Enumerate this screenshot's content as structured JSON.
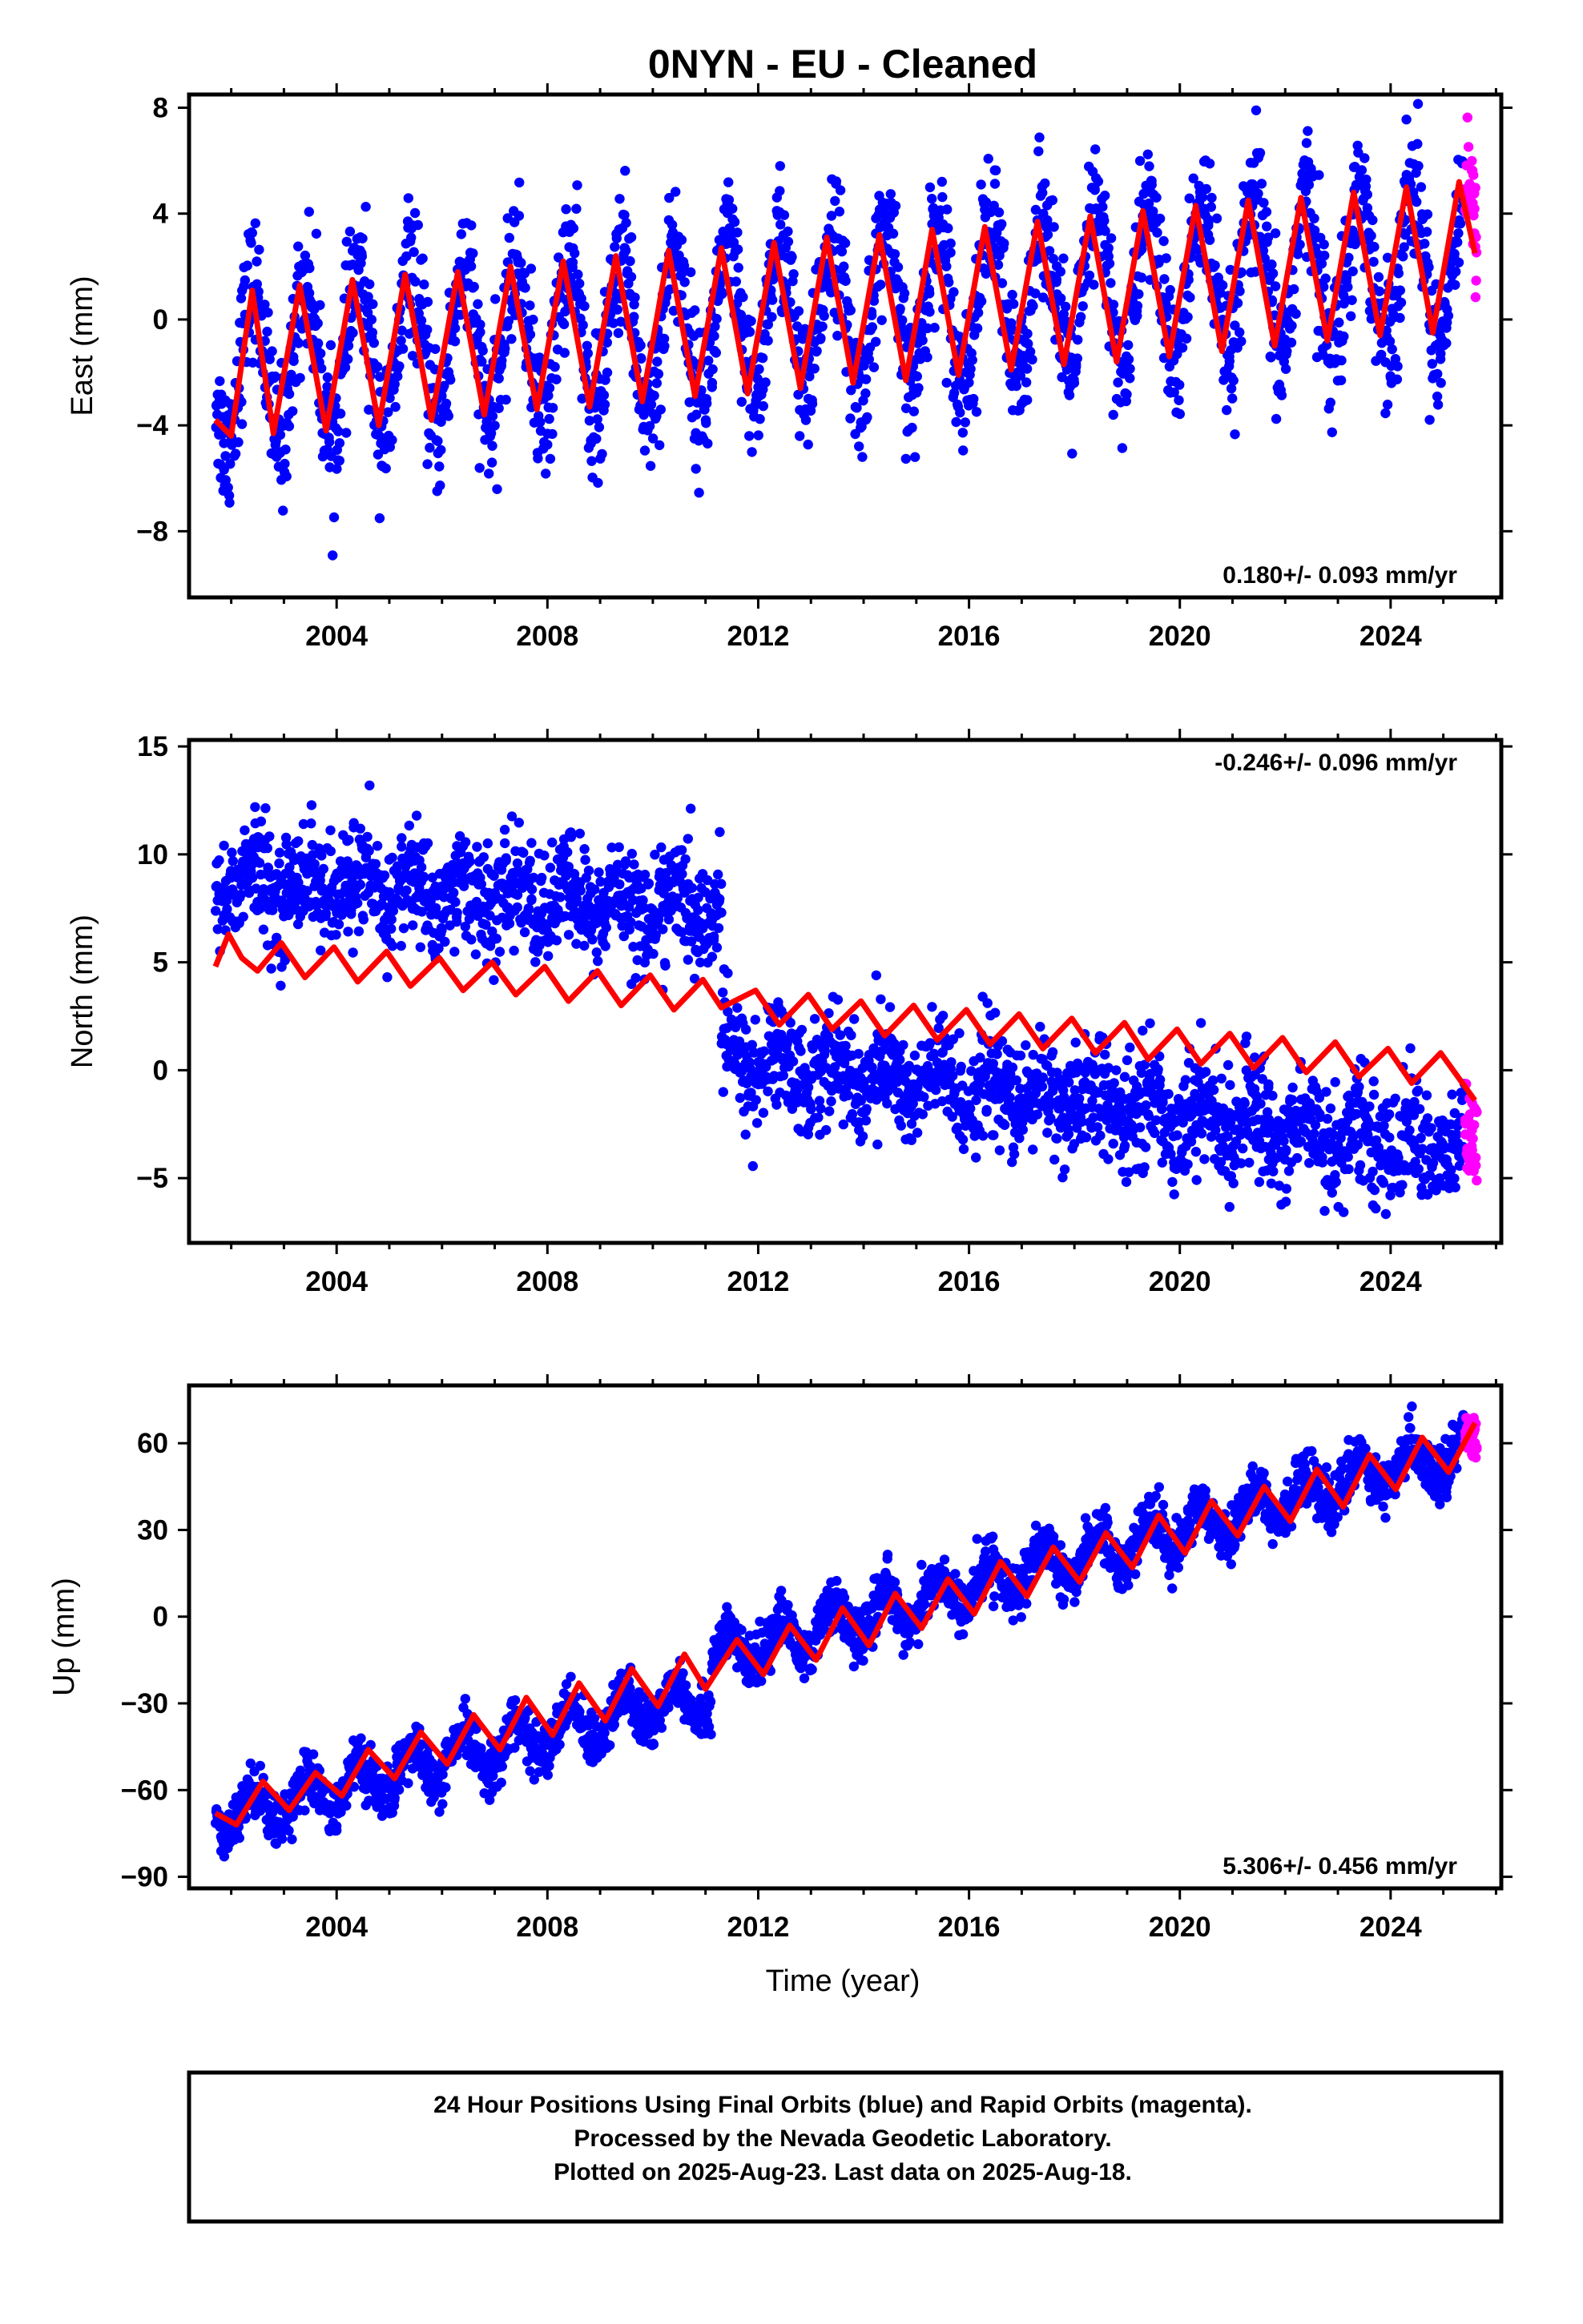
{
  "title": "0NYN  - EU - Cleaned",
  "caption": {
    "line1": "24 Hour Positions Using Final Orbits (blue) and Rapid Orbits (magenta).",
    "line2": "Processed by the Nevada Geodetic Laboratory.",
    "line3": "Plotted on 2025-Aug-23. Last data on 2025-Aug-18."
  },
  "colors": {
    "final": "#0000ff",
    "rapid": "#ff00ff",
    "model": "#ff0000",
    "frame": "#000000"
  },
  "chart_data": [
    {
      "type": "scatter",
      "component": "east",
      "ylabel": "East (mm)",
      "rate": "0.180+/- 0.093 mm/yr",
      "rate_position": "bottom-right",
      "xlim": [
        2001.2,
        2026.1
      ],
      "ylim": [
        -10.5,
        8.5
      ],
      "xticks": [
        2004,
        2008,
        2012,
        2016,
        2020,
        2024
      ],
      "yticks": [
        -8,
        -4,
        0,
        4,
        8
      ],
      "ytick_labels": [
        "−8",
        "−4",
        "0",
        "4",
        "8"
      ],
      "data_start": 2001.7,
      "data_end": 2025.4,
      "rapid_start": 2025.4,
      "rapid_end": 2025.63,
      "model_points": [
        [
          2001.7,
          -3.8
        ],
        [
          2002.0,
          -4.4
        ],
        [
          2002.4,
          1.1
        ],
        [
          2002.8,
          -4.3
        ],
        [
          2003.3,
          1.3
        ],
        [
          2003.8,
          -4.2
        ],
        [
          2004.3,
          1.5
        ],
        [
          2004.8,
          -4.0
        ],
        [
          2005.3,
          1.7
        ],
        [
          2005.8,
          -3.8
        ],
        [
          2006.3,
          1.8
        ],
        [
          2006.8,
          -3.6
        ],
        [
          2007.3,
          2.0
        ],
        [
          2007.8,
          -3.4
        ],
        [
          2008.3,
          2.2
        ],
        [
          2008.8,
          -3.3
        ],
        [
          2009.3,
          2.4
        ],
        [
          2009.8,
          -3.1
        ],
        [
          2010.3,
          2.6
        ],
        [
          2010.8,
          -2.9
        ],
        [
          2011.3,
          2.7
        ],
        [
          2011.8,
          -2.8
        ],
        [
          2012.3,
          2.9
        ],
        [
          2012.8,
          -2.6
        ],
        [
          2013.3,
          3.1
        ],
        [
          2013.8,
          -2.4
        ],
        [
          2014.3,
          3.2
        ],
        [
          2014.8,
          -2.3
        ],
        [
          2015.3,
          3.4
        ],
        [
          2015.8,
          -2.1
        ],
        [
          2016.3,
          3.5
        ],
        [
          2016.8,
          -1.9
        ],
        [
          2017.3,
          3.7
        ],
        [
          2017.8,
          -1.7
        ],
        [
          2018.3,
          3.9
        ],
        [
          2018.8,
          -1.6
        ],
        [
          2019.3,
          4.1
        ],
        [
          2019.8,
          -1.4
        ],
        [
          2020.3,
          4.3
        ],
        [
          2020.8,
          -1.2
        ],
        [
          2021.3,
          4.5
        ],
        [
          2021.8,
          -1.0
        ],
        [
          2022.3,
          4.6
        ],
        [
          2022.8,
          -0.8
        ],
        [
          2023.3,
          4.8
        ],
        [
          2023.8,
          -0.6
        ],
        [
          2024.3,
          5.0
        ],
        [
          2024.8,
          -0.5
        ],
        [
          2025.3,
          5.2
        ],
        [
          2025.6,
          2.5
        ]
      ],
      "trend": [
        [
          2001.7,
          -1.8
        ],
        [
          2025.6,
          2.3
        ]
      ],
      "annual_amplitude": 3.0,
      "noise": 1.3,
      "offsets": []
    },
    {
      "type": "scatter",
      "component": "north",
      "ylabel": "North (mm)",
      "rate": "-0.246+/- 0.096 mm/yr",
      "rate_position": "top-right",
      "xlim": [
        2001.2,
        2026.1
      ],
      "ylim": [
        -8.0,
        15.3
      ],
      "xticks": [
        2004,
        2008,
        2012,
        2016,
        2020,
        2024
      ],
      "yticks": [
        -5,
        0,
        5,
        10,
        15
      ],
      "ytick_labels": [
        "−5",
        "0",
        "5",
        "10",
        "15"
      ],
      "data_start": 2001.7,
      "data_end": 2025.4,
      "rapid_start": 2025.4,
      "rapid_end": 2025.63,
      "model_points": [
        [
          2001.7,
          4.8
        ],
        [
          2001.95,
          6.3
        ],
        [
          2002.2,
          5.2
        ],
        [
          2002.5,
          4.6
        ],
        [
          2002.95,
          5.9
        ],
        [
          2003.4,
          4.3
        ],
        [
          2003.95,
          5.7
        ],
        [
          2004.4,
          4.1
        ],
        [
          2004.95,
          5.5
        ],
        [
          2005.4,
          3.9
        ],
        [
          2005.95,
          5.2
        ],
        [
          2006.4,
          3.7
        ],
        [
          2006.95,
          5.0
        ],
        [
          2007.4,
          3.5
        ],
        [
          2007.95,
          4.8
        ],
        [
          2008.4,
          3.2
        ],
        [
          2008.95,
          4.6
        ],
        [
          2009.4,
          3.0
        ],
        [
          2009.95,
          4.4
        ],
        [
          2010.4,
          2.8
        ],
        [
          2010.95,
          4.2
        ],
        [
          2011.3,
          2.9
        ],
        [
          2011.95,
          3.7
        ],
        [
          2012.4,
          2.1
        ],
        [
          2012.95,
          3.5
        ],
        [
          2013.4,
          1.9
        ],
        [
          2013.95,
          3.2
        ],
        [
          2014.4,
          1.6
        ],
        [
          2014.95,
          3.0
        ],
        [
          2015.4,
          1.4
        ],
        [
          2015.95,
          2.8
        ],
        [
          2016.4,
          1.2
        ],
        [
          2016.95,
          2.6
        ],
        [
          2017.4,
          1.0
        ],
        [
          2017.95,
          2.4
        ],
        [
          2018.4,
          0.8
        ],
        [
          2018.95,
          2.2
        ],
        [
          2019.4,
          0.5
        ],
        [
          2019.95,
          1.9
        ],
        [
          2020.4,
          0.3
        ],
        [
          2020.95,
          1.7
        ],
        [
          2021.4,
          0.1
        ],
        [
          2021.95,
          1.5
        ],
        [
          2022.4,
          -0.1
        ],
        [
          2022.95,
          1.3
        ],
        [
          2023.4,
          -0.3
        ],
        [
          2023.95,
          1.0
        ],
        [
          2024.4,
          -0.6
        ],
        [
          2024.95,
          0.8
        ],
        [
          2025.6,
          -1.4
        ]
      ],
      "trend": [
        [
          2001.7,
          8.8
        ],
        [
          2011.3,
          7.4
        ],
        [
          2011.3,
          0.6
        ],
        [
          2025.6,
          -3.8
        ]
      ],
      "annual_amplitude": 0.8,
      "noise": 1.3,
      "offsets": [
        2011.3
      ]
    },
    {
      "type": "scatter",
      "component": "up",
      "ylabel": "Up (mm)",
      "xlabel": "Time (year)",
      "rate": "5.306+/- 0.456 mm/yr",
      "rate_position": "bottom-right",
      "xlim": [
        2001.2,
        2026.1
      ],
      "ylim": [
        -94,
        80
      ],
      "xticks": [
        2004,
        2008,
        2012,
        2016,
        2020,
        2024
      ],
      "yticks": [
        -90,
        -60,
        -30,
        0,
        30,
        60
      ],
      "ytick_labels": [
        "−90",
        "−60",
        "−30",
        "0",
        "30",
        "60"
      ],
      "data_start": 2001.7,
      "data_end": 2025.4,
      "rapid_start": 2025.4,
      "rapid_end": 2025.63,
      "model_points": [
        [
          2001.7,
          -68
        ],
        [
          2002.1,
          -72
        ],
        [
          2002.6,
          -57
        ],
        [
          2003.1,
          -67
        ],
        [
          2003.6,
          -54
        ],
        [
          2004.1,
          -62
        ],
        [
          2004.6,
          -46
        ],
        [
          2005.1,
          -56
        ],
        [
          2005.6,
          -40
        ],
        [
          2006.1,
          -51
        ],
        [
          2006.6,
          -34
        ],
        [
          2007.1,
          -46
        ],
        [
          2007.6,
          -28
        ],
        [
          2008.1,
          -41
        ],
        [
          2008.6,
          -23
        ],
        [
          2009.1,
          -36
        ],
        [
          2009.6,
          -18
        ],
        [
          2010.1,
          -31
        ],
        [
          2010.6,
          -13
        ],
        [
          2011.0,
          -25
        ],
        [
          2011.6,
          -8
        ],
        [
          2012.1,
          -20
        ],
        [
          2012.6,
          -3
        ],
        [
          2013.1,
          -15
        ],
        [
          2013.6,
          3
        ],
        [
          2014.1,
          -10
        ],
        [
          2014.6,
          8
        ],
        [
          2015.1,
          -4
        ],
        [
          2015.6,
          13
        ],
        [
          2016.1,
          1
        ],
        [
          2016.6,
          19
        ],
        [
          2017.1,
          7
        ],
        [
          2017.6,
          24
        ],
        [
          2018.1,
          12
        ],
        [
          2018.6,
          29
        ],
        [
          2019.1,
          17
        ],
        [
          2019.6,
          35
        ],
        [
          2020.1,
          22
        ],
        [
          2020.6,
          40
        ],
        [
          2021.1,
          28
        ],
        [
          2021.6,
          45
        ],
        [
          2022.1,
          33
        ],
        [
          2022.6,
          51
        ],
        [
          2023.1,
          38
        ],
        [
          2023.6,
          56
        ],
        [
          2024.1,
          44
        ],
        [
          2024.6,
          62
        ],
        [
          2025.1,
          50
        ],
        [
          2025.6,
          67
        ]
      ],
      "trend": [
        [
          2001.7,
          -70
        ],
        [
          2011.1,
          -26
        ],
        [
          2011.1,
          -15
        ],
        [
          2025.6,
          59
        ]
      ],
      "annual_amplitude": 7.0,
      "noise": 4.5,
      "offsets": [
        2011.1
      ]
    }
  ]
}
